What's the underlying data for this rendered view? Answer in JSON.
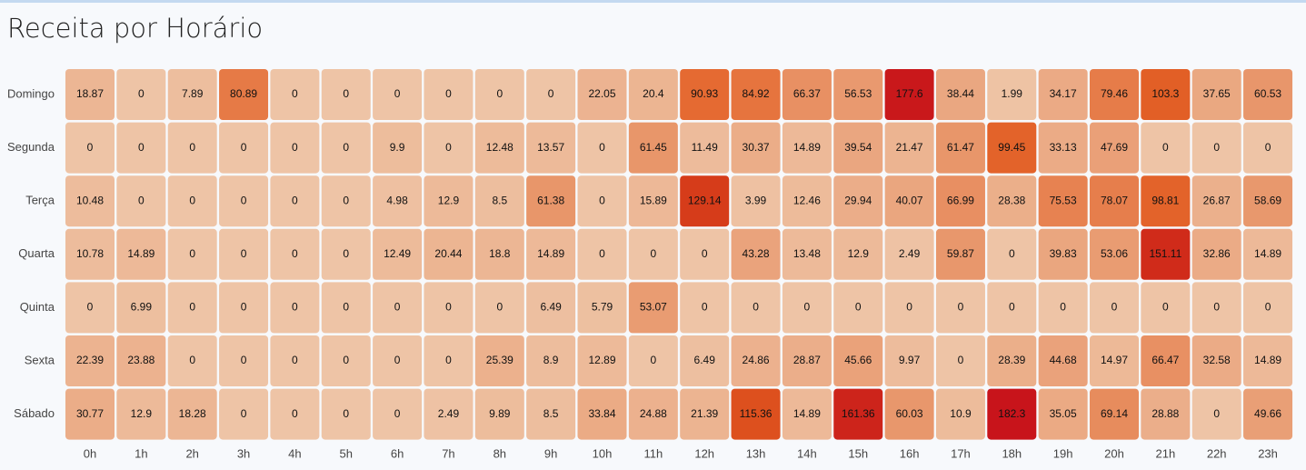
{
  "chart_data": {
    "type": "heatmap",
    "title": "Receita por Horário",
    "y_categories": [
      "Domingo",
      "Segunda",
      "Terça",
      "Quarta",
      "Quinta",
      "Sexta",
      "Sábado"
    ],
    "x_categories": [
      "0h",
      "1h",
      "2h",
      "3h",
      "4h",
      "5h",
      "6h",
      "7h",
      "8h",
      "9h",
      "10h",
      "11h",
      "12h",
      "13h",
      "14h",
      "15h",
      "16h",
      "17h",
      "18h",
      "19h",
      "20h",
      "21h",
      "22h",
      "23h"
    ],
    "values": [
      [
        "18.87",
        "0",
        "7.89",
        "80.89",
        "0",
        "0",
        "0",
        "0",
        "0",
        "0",
        "22.05",
        "20.4",
        "90.93",
        "84.92",
        "66.37",
        "56.53",
        "177.6",
        "38.44",
        "1.99",
        "34.17",
        "79.46",
        "103.3",
        "37.65",
        "60.53"
      ],
      [
        "0",
        "0",
        "0",
        "0",
        "0",
        "0",
        "9.9",
        "0",
        "12.48",
        "13.57",
        "0",
        "61.45",
        "11.49",
        "30.37",
        "14.89",
        "39.54",
        "21.47",
        "61.47",
        "99.45",
        "33.13",
        "47.69",
        "0",
        "0",
        "0"
      ],
      [
        "10.48",
        "0",
        "0",
        "0",
        "0",
        "0",
        "4.98",
        "12.9",
        "8.5",
        "61.38",
        "0",
        "15.89",
        "129.14",
        "3.99",
        "12.46",
        "29.94",
        "40.07",
        "66.99",
        "28.38",
        "75.53",
        "78.07",
        "98.81",
        "26.87",
        "58.69"
      ],
      [
        "10.78",
        "14.89",
        "0",
        "0",
        "0",
        "0",
        "12.49",
        "20.44",
        "18.8",
        "14.89",
        "0",
        "0",
        "0",
        "43.28",
        "13.48",
        "12.9",
        "2.49",
        "59.87",
        "0",
        "39.83",
        "53.06",
        "151.11",
        "32.86",
        "14.89"
      ],
      [
        "0",
        "6.99",
        "0",
        "0",
        "0",
        "0",
        "0",
        "0",
        "0",
        "6.49",
        "5.79",
        "53.07",
        "0",
        "0",
        "0",
        "0",
        "0",
        "0",
        "0",
        "0",
        "0",
        "0",
        "0",
        "0"
      ],
      [
        "22.39",
        "23.88",
        "0",
        "0",
        "0",
        "0",
        "0",
        "0",
        "25.39",
        "8.9",
        "12.89",
        "0",
        "6.49",
        "24.86",
        "28.87",
        "45.66",
        "9.97",
        "0",
        "28.39",
        "44.68",
        "14.97",
        "66.47",
        "32.58",
        "14.89"
      ],
      [
        "30.77",
        "12.9",
        "18.28",
        "0",
        "0",
        "0",
        "0",
        "2.49",
        "9.89",
        "8.5",
        "33.84",
        "24.88",
        "21.39",
        "115.36",
        "14.89",
        "161.36",
        "60.03",
        "10.9",
        "182.3",
        "35.05",
        "69.14",
        "28.88",
        "0",
        "49.66"
      ]
    ],
    "color_scale": {
      "stops": [
        [
          0,
          "#eec4a6"
        ],
        [
          0.35,
          "#e89468"
        ],
        [
          0.5,
          "#e56a32"
        ],
        [
          0.6,
          "#e05a20"
        ],
        [
          0.7,
          "#d63d1a"
        ],
        [
          1,
          "#c8141b"
        ]
      ],
      "vmax": 182.3
    },
    "background": "#f7f9fc"
  }
}
